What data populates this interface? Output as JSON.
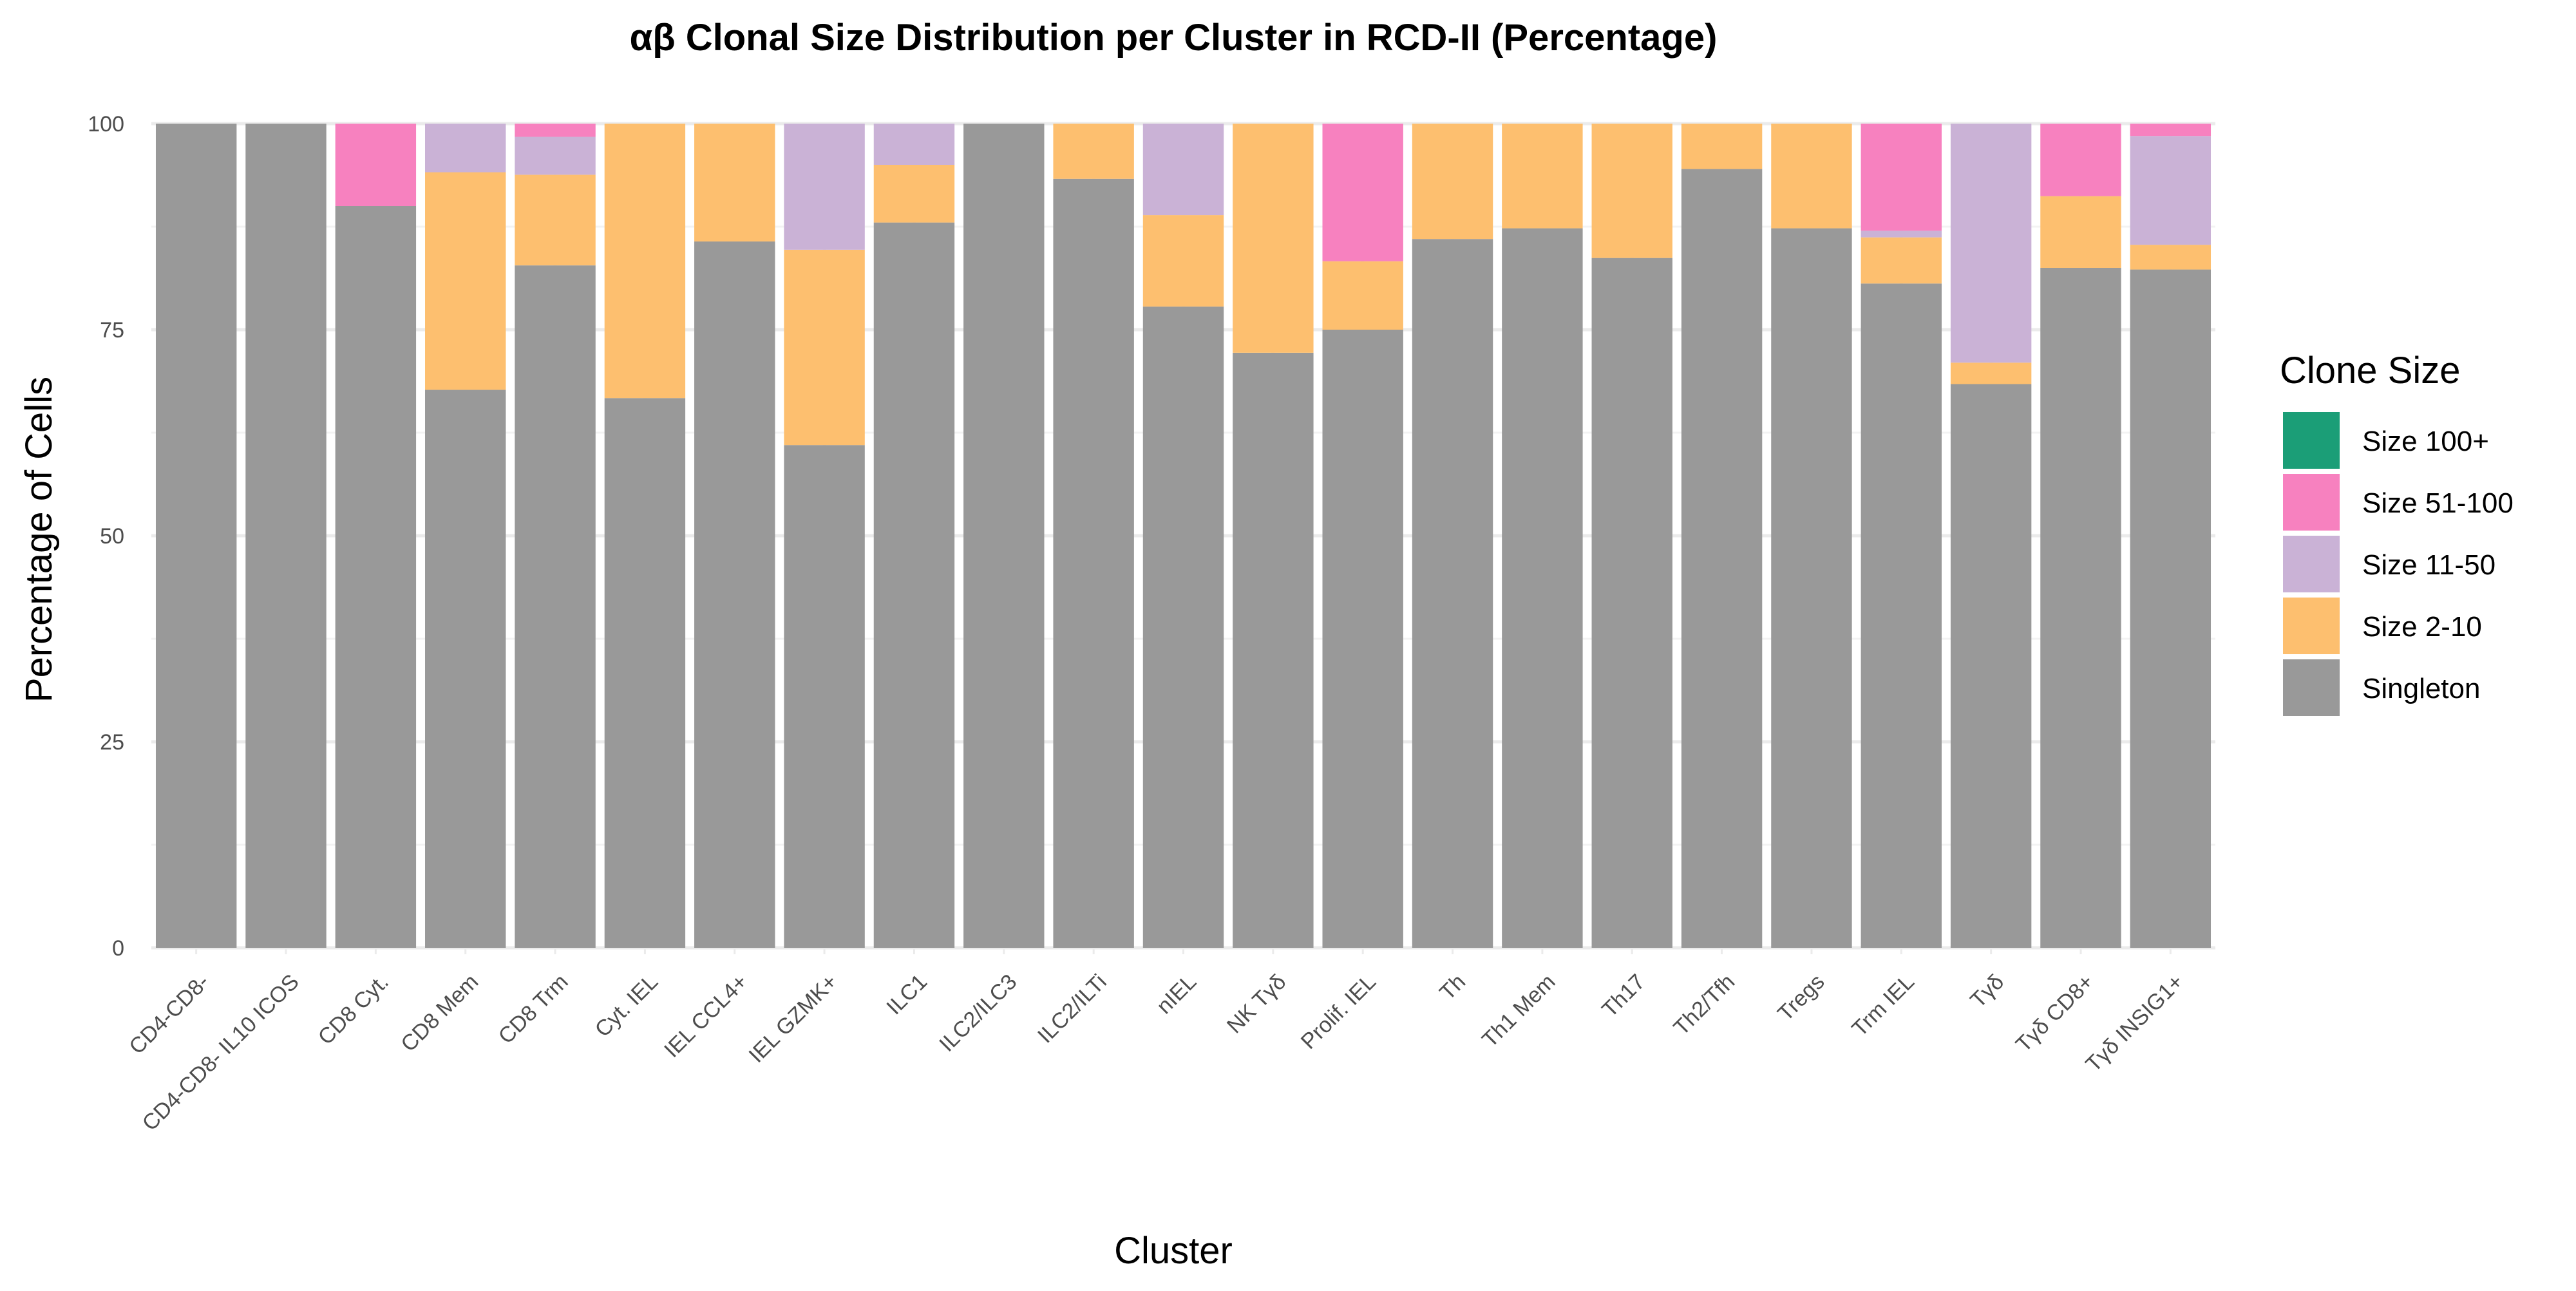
{
  "chart_data": {
    "type": "bar",
    "stacked": true,
    "title": "αβ Clonal Size Distribution per Cluster in RCD-II (Percentage)",
    "xlabel": "Cluster",
    "ylabel": "Percentage of Cells",
    "ylim": [
      0,
      100
    ],
    "yticks": [
      0,
      25,
      50,
      75,
      100
    ],
    "grid": true,
    "legend_title": "Clone Size",
    "legend_position": "right",
    "categories": [
      "CD4-CD8-",
      "CD4-CD8- IL10 ICOS",
      "CD8 Cyt.",
      "CD8 Mem",
      "CD8 Trm",
      "Cyt. IEL",
      "IEL CCL4+",
      "IEL GZMK+",
      "ILC1",
      "ILC2/ILC3",
      "ILC2/ILTi",
      "nIEL",
      "NK Tγδ",
      "Prolif. IEL",
      "Th",
      "Th1 Mem",
      "Th17",
      "Th2/Tfh",
      "Tregs",
      "Trm IEL",
      "Tγδ",
      "Tγδ CD8+",
      "Tγδ INSIG1+"
    ],
    "series": [
      {
        "name": "Singleton",
        "color": "#999999",
        "values": [
          100,
          100,
          90.0,
          67.7,
          82.8,
          66.7,
          85.7,
          61.0,
          88.0,
          100,
          93.3,
          77.8,
          72.2,
          75.0,
          86.0,
          87.3,
          83.7,
          94.5,
          87.3,
          80.6,
          68.4,
          82.5,
          82.3
        ]
      },
      {
        "name": "Size 2-10",
        "color": "#FDBF6F",
        "values": [
          0,
          0,
          0,
          26.4,
          11.0,
          33.3,
          14.3,
          23.7,
          7.0,
          0,
          6.7,
          11.1,
          27.8,
          8.3,
          14.0,
          12.7,
          16.3,
          5.5,
          12.7,
          5.6,
          2.6,
          8.7,
          3.0
        ]
      },
      {
        "name": "Size 11-50",
        "color": "#CAB2D6",
        "values": [
          0,
          0,
          0,
          5.9,
          4.6,
          0,
          0,
          15.3,
          5.0,
          0,
          0,
          11.1,
          0,
          0,
          0,
          0,
          0,
          0,
          0,
          0.8,
          29.0,
          0,
          13.2
        ]
      },
      {
        "name": "Size 51-100",
        "color": "#F781BF",
        "values": [
          0,
          0,
          10.0,
          0,
          1.6,
          0,
          0,
          0,
          0,
          0,
          0,
          0,
          0,
          16.7,
          0,
          0,
          0,
          0,
          0,
          13.0,
          0,
          8.8,
          1.5
        ]
      },
      {
        "name": "Size 100+",
        "color": "#1B9E77",
        "values": [
          0,
          0,
          0,
          0,
          0,
          0,
          0,
          0,
          0,
          0,
          0,
          0,
          0,
          0,
          0,
          0,
          0,
          0,
          0,
          0,
          0,
          0,
          0
        ]
      }
    ],
    "legend_order": [
      "Size 100+",
      "Size 51-100",
      "Size 11-50",
      "Size 2-10",
      "Singleton"
    ]
  }
}
